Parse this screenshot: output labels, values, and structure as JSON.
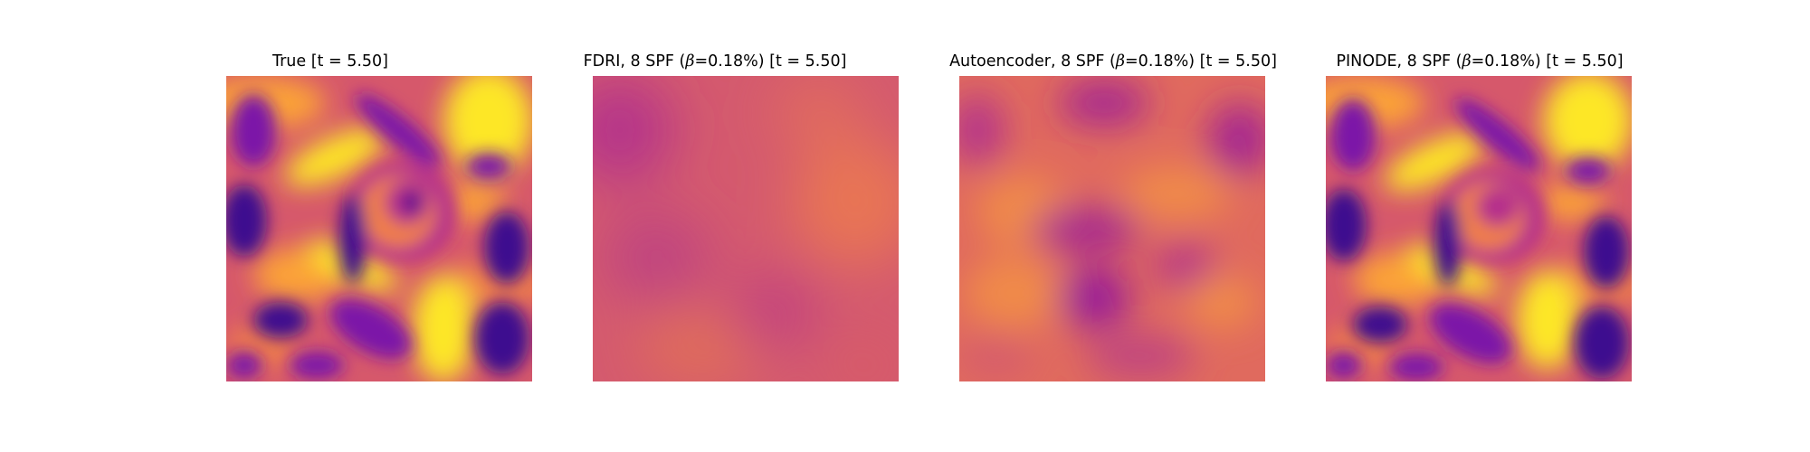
{
  "figure": {
    "panels": [
      {
        "id": "true",
        "title_prefix": "True [t = 5.50]",
        "title_beta": "",
        "title_suffix": ""
      },
      {
        "id": "fdri",
        "title_prefix": "FDRI, 8 SPF (",
        "title_beta": "β",
        "title_suffix": "=0.18%) [t = 5.50]"
      },
      {
        "id": "autoencoder",
        "title_prefix": "Autoencoder, 8 SPF (",
        "title_beta": "β",
        "title_suffix": "=0.18%) [t = 5.50]"
      },
      {
        "id": "pinode",
        "title_prefix": "PINODE, 8 SPF (",
        "title_beta": "β",
        "title_suffix": "=0.18%) [t = 5.50]"
      }
    ],
    "colormap": "plasma",
    "palette": {
      "dark": "#3d0a8f",
      "purple": "#7c12a8",
      "magenta": "#b52f8c",
      "pink": "#d6586b",
      "orange": "#f07f4a",
      "light": "#fba238",
      "yellow": "#fde725"
    }
  }
}
